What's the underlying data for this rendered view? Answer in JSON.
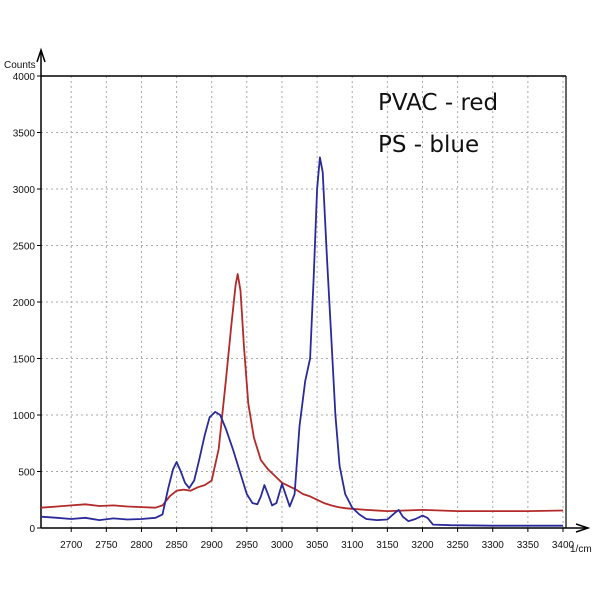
{
  "chart_data": {
    "type": "line",
    "title": "",
    "xlabel": "1/cm",
    "ylabel": "Counts",
    "xlim": [
      2657,
      3400
    ],
    "ylim": [
      0,
      4000
    ],
    "grid": true,
    "xticks": [
      2700,
      2750,
      2800,
      2850,
      2900,
      2950,
      3000,
      3050,
      3100,
      3150,
      3200,
      3250,
      3300,
      3350,
      3400
    ],
    "yticks": [
      0,
      500,
      1000,
      1500,
      2000,
      2500,
      3000,
      3500,
      4000
    ],
    "annotations": [
      "PVAC - red",
      "PS - blue"
    ],
    "series": [
      {
        "name": "PVAC",
        "color": "#b22a2a",
        "x": [
          2657,
          2680,
          2700,
          2720,
          2740,
          2760,
          2780,
          2800,
          2820,
          2830,
          2840,
          2850,
          2860,
          2870,
          2880,
          2890,
          2900,
          2910,
          2920,
          2928,
          2934,
          2937,
          2941,
          2946,
          2952,
          2960,
          2970,
          2980,
          2990,
          3000,
          3010,
          3020,
          3030,
          3040,
          3050,
          3060,
          3070,
          3080,
          3090,
          3100,
          3120,
          3150,
          3200,
          3250,
          3300,
          3350,
          3400
        ],
        "y": [
          180,
          190,
          200,
          210,
          195,
          200,
          190,
          185,
          180,
          200,
          280,
          330,
          340,
          330,
          360,
          380,
          420,
          700,
          1300,
          1800,
          2150,
          2248,
          2100,
          1600,
          1100,
          800,
          600,
          520,
          460,
          400,
          370,
          340,
          300,
          280,
          250,
          220,
          200,
          185,
          175,
          170,
          160,
          150,
          160,
          150,
          150,
          150,
          155
        ]
      },
      {
        "name": "PS",
        "color": "#2a2a9a",
        "x": [
          2657,
          2680,
          2700,
          2720,
          2740,
          2760,
          2780,
          2800,
          2820,
          2830,
          2838,
          2845,
          2850,
          2856,
          2862,
          2868,
          2875,
          2882,
          2890,
          2897,
          2905,
          2912,
          2920,
          2930,
          2940,
          2950,
          2958,
          2965,
          2970,
          2975,
          2980,
          2986,
          2992,
          3000,
          3005,
          3011,
          3018,
          3025,
          3033,
          3040,
          3045,
          3050,
          3054,
          3058,
          3064,
          3070,
          3076,
          3082,
          3090,
          3100,
          3110,
          3120,
          3135,
          3150,
          3160,
          3166,
          3172,
          3180,
          3190,
          3200,
          3207,
          3215,
          3240,
          3300,
          3350,
          3400
        ],
        "y": [
          100,
          90,
          80,
          90,
          70,
          85,
          75,
          80,
          90,
          120,
          350,
          520,
          584,
          500,
          400,
          354,
          420,
          600,
          820,
          980,
          1027,
          1000,
          880,
          700,
          500,
          300,
          220,
          210,
          280,
          380,
          300,
          200,
          220,
          390,
          300,
          190,
          300,
          900,
          1300,
          1500,
          2200,
          3000,
          3280,
          3150,
          2400,
          1700,
          1000,
          550,
          300,
          180,
          120,
          80,
          70,
          75,
          130,
          160,
          100,
          60,
          80,
          110,
          90,
          30,
          25,
          20,
          20,
          20
        ]
      }
    ]
  }
}
